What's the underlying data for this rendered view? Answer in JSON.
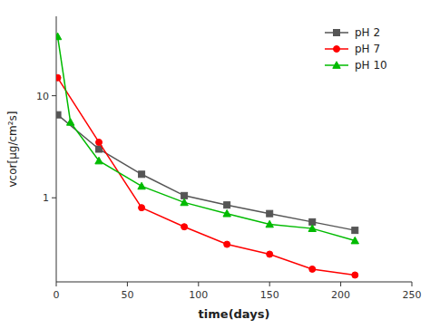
{
  "chart_data": {
    "type": "line",
    "log": "y",
    "grid": false,
    "legend": "upper right",
    "xlabel": "time(days)",
    "ylabel": "vcor[μg/cm²s]",
    "xlim": [
      0,
      250
    ],
    "xticks": [
      0,
      50,
      100,
      150,
      200,
      250
    ],
    "ylim": [
      0.15,
      60
    ],
    "yticks": [
      1,
      10
    ],
    "series": [
      {
        "name": "pH 2",
        "color": "#555555",
        "marker": "square",
        "x": [
          1,
          30,
          60,
          90,
          120,
          150,
          180,
          210
        ],
        "values": [
          6.5,
          3.0,
          1.7,
          1.05,
          0.85,
          0.7,
          0.58,
          0.48
        ]
      },
      {
        "name": "pH 7",
        "color": "#ff0000",
        "marker": "circle",
        "x": [
          1,
          30,
          60,
          90,
          120,
          150,
          180,
          210
        ],
        "values": [
          15.0,
          3.5,
          0.8,
          0.52,
          0.35,
          0.28,
          0.2,
          0.175
        ]
      },
      {
        "name": "pH 10",
        "color": "#00bb00",
        "marker": "triangle",
        "x": [
          1,
          10,
          30,
          60,
          90,
          120,
          150,
          180,
          210
        ],
        "values": [
          38.0,
          5.5,
          2.3,
          1.3,
          0.9,
          0.7,
          0.55,
          0.5,
          0.38
        ]
      }
    ]
  }
}
